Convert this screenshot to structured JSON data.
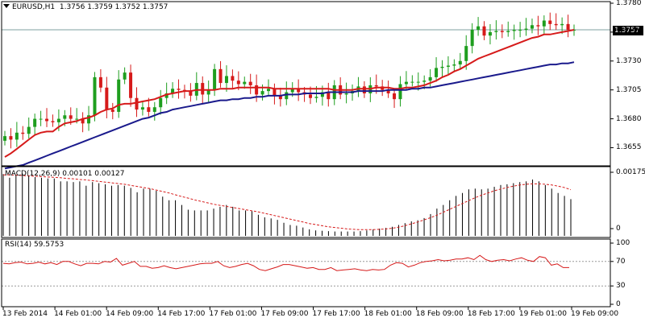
{
  "header": {
    "symbol": "EURUSD,H1",
    "ohlc": "1.3756 1.3759 1.3752 1.3757"
  },
  "last_price_label": "1.3757",
  "colors": {
    "bull": "#1e9e1e",
    "bear": "#d61a1a",
    "ma_fast": "#d61a1a",
    "ma_slow": "#1a1a8c",
    "grid": "#7fa0a0",
    "axis": "#000000"
  },
  "chart_data": [
    {
      "type": "candlestick",
      "title": "EURUSD,H1",
      "ylim": [
        1.364,
        1.378
      ],
      "y_ticks": [
        "1.3780",
        "1.3755",
        "1.3730",
        "1.3705",
        "1.3680",
        "1.3655"
      ],
      "x_ticks": [
        "13 Feb 2014",
        "14 Feb 01:00",
        "14 Feb 09:00",
        "14 Feb 17:00",
        "17 Feb 01:00",
        "17 Feb 09:00",
        "17 Feb 17:00",
        "18 Feb 01:00",
        "18 Feb 09:00",
        "18 Feb 17:00",
        "19 Feb 01:00",
        "19 Feb 09:00"
      ],
      "last_price": 1.3757,
      "series": [
        {
          "name": "price",
          "closes": [
            1.3665,
            1.3662,
            1.3668,
            1.3667,
            1.3673,
            1.368,
            1.368,
            1.3678,
            1.3677,
            1.368,
            1.3683,
            1.368,
            1.368,
            1.3676,
            1.3683,
            1.3716,
            1.3707,
            1.3688,
            1.3686,
            1.3714,
            1.372,
            1.3698,
            1.3688,
            1.369,
            1.3686,
            1.369,
            1.3698,
            1.3702,
            1.3706,
            1.3705,
            1.3704,
            1.37,
            1.3711,
            1.3701,
            1.3705,
            1.3723,
            1.3711,
            1.3717,
            1.3713,
            1.371,
            1.3712,
            1.3709,
            1.3701,
            1.3704,
            1.3706,
            1.37,
            1.3697,
            1.3703,
            1.3706,
            1.3703,
            1.3701,
            1.3698,
            1.3699,
            1.3703,
            1.3697,
            1.3709,
            1.3701,
            1.3702,
            1.3704,
            1.3708,
            1.3702,
            1.3709,
            1.3708,
            1.3705,
            1.3702,
            1.3697,
            1.371,
            1.3712,
            1.3712,
            1.3712,
            1.3713,
            1.3716,
            1.3724,
            1.3725,
            1.3726,
            1.3727,
            1.373,
            1.3743,
            1.3757,
            1.376,
            1.3752,
            1.3755,
            1.3756,
            1.3755,
            1.3756,
            1.3757,
            1.3757,
            1.3758,
            1.3761,
            1.376,
            1.3765,
            1.3762,
            1.3761,
            1.3762,
            1.3757,
            1.3757
          ]
        },
        {
          "name": "ma_fast",
          "values": [
            1.3647,
            1.365,
            1.3654,
            1.3658,
            1.3662,
            1.3666,
            1.3668,
            1.3669,
            1.3669,
            1.3673,
            1.3676,
            1.3677,
            1.3678,
            1.368,
            1.3681,
            1.3683,
            1.3686,
            1.3688,
            1.3689,
            1.3692,
            1.3693,
            1.3693,
            1.3694,
            1.3695,
            1.3696,
            1.3697,
            1.3699,
            1.3701,
            1.3702,
            1.3703,
            1.3704,
            1.3704,
            1.3705,
            1.3705,
            1.3705,
            1.3705,
            1.3706,
            1.3706,
            1.3706,
            1.3707,
            1.3707,
            1.3707,
            1.3707,
            1.3707,
            1.3707,
            1.3706,
            1.3706,
            1.3706,
            1.3706,
            1.3706,
            1.3706,
            1.3706,
            1.3706,
            1.3706,
            1.3706,
            1.3705,
            1.3705,
            1.3705,
            1.3705,
            1.3706,
            1.3706,
            1.3706,
            1.3707,
            1.3707,
            1.3707,
            1.3706,
            1.3706,
            1.3707,
            1.3707,
            1.3708,
            1.3709,
            1.3711,
            1.3713,
            1.3716,
            1.3718,
            1.3721,
            1.3723,
            1.3726,
            1.3729,
            1.3732,
            1.3734,
            1.3736,
            1.3738,
            1.374,
            1.3742,
            1.3744,
            1.3746,
            1.3748,
            1.375,
            1.3751,
            1.3753,
            1.3753,
            1.3754,
            1.3755,
            1.3756,
            1.3757
          ]
        },
        {
          "name": "ma_slow",
          "values": [
            1.3637,
            1.3638,
            1.3639,
            1.364,
            1.3642,
            1.3644,
            1.3646,
            1.3648,
            1.365,
            1.3652,
            1.3654,
            1.3656,
            1.3658,
            1.366,
            1.3662,
            1.3664,
            1.3666,
            1.3668,
            1.367,
            1.3672,
            1.3674,
            1.3676,
            1.3678,
            1.368,
            1.3681,
            1.3683,
            1.3685,
            1.3686,
            1.3688,
            1.3689,
            1.369,
            1.3691,
            1.3692,
            1.3693,
            1.3694,
            1.3695,
            1.3696,
            1.3696,
            1.3697,
            1.3697,
            1.3698,
            1.3698,
            1.3699,
            1.3699,
            1.37,
            1.37,
            1.37,
            1.3701,
            1.3701,
            1.3701,
            1.3702,
            1.3702,
            1.3702,
            1.3702,
            1.3703,
            1.3703,
            1.3703,
            1.3703,
            1.3703,
            1.3704,
            1.3704,
            1.3704,
            1.3704,
            1.3704,
            1.3705,
            1.3705,
            1.3705,
            1.3705,
            1.3706,
            1.3706,
            1.3707,
            1.3707,
            1.3708,
            1.3709,
            1.371,
            1.3711,
            1.3712,
            1.3713,
            1.3714,
            1.3715,
            1.3716,
            1.3717,
            1.3718,
            1.3719,
            1.372,
            1.3721,
            1.3722,
            1.3723,
            1.3724,
            1.3725,
            1.3726,
            1.3727,
            1.3727,
            1.3728,
            1.3728,
            1.3729
          ]
        }
      ]
    },
    {
      "type": "histogram",
      "title": "MACD(12,26,9) 0.00101 0.00127",
      "y_ticks": [
        "0.00175",
        "0"
      ],
      "ylim": [
        0.0,
        0.00175
      ],
      "series": [
        {
          "name": "macd",
          "values": [
            0.0017,
            0.0016,
            0.00168,
            0.00172,
            0.00165,
            0.00162,
            0.0016,
            0.00158,
            0.00158,
            0.0015,
            0.0015,
            0.00148,
            0.0015,
            0.00138,
            0.00148,
            0.00145,
            0.00142,
            0.00138,
            0.0014,
            0.00138,
            0.00132,
            0.0012,
            0.0013,
            0.0013,
            0.00124,
            0.00108,
            0.00098,
            0.00098,
            0.00085,
            0.00072,
            0.0007,
            0.0007,
            0.0007,
            0.00075,
            0.0008,
            0.00085,
            0.0008,
            0.0007,
            0.0007,
            0.00068,
            0.00058,
            0.00051,
            0.00048,
            0.00044,
            0.00036,
            0.0003,
            0.00028,
            0.00023,
            0.00018,
            0.00015,
            0.00014,
            0.00013,
            0.00012,
            0.00012,
            0.00012,
            0.00012,
            0.00013,
            0.00015,
            0.00018,
            0.0002,
            0.00022,
            0.00025,
            0.0003,
            0.00035,
            0.0004,
            0.00043,
            0.00049,
            0.0006,
            0.00075,
            0.00085,
            0.00098,
            0.0011,
            0.00118,
            0.00128,
            0.0013,
            0.00128,
            0.0013,
            0.00135,
            0.0014,
            0.00142,
            0.00145,
            0.00148,
            0.0015,
            0.00155,
            0.0015,
            0.0014,
            0.0013,
            0.00118,
            0.0011,
            0.00101
          ]
        },
        {
          "name": "signal",
          "values": [
            0.00168,
            0.00168,
            0.00167,
            0.00166,
            0.00165,
            0.00164,
            0.00163,
            0.00162,
            0.00161,
            0.0016,
            0.00158,
            0.00157,
            0.00155,
            0.00154,
            0.00152,
            0.0015,
            0.00148,
            0.00146,
            0.00144,
            0.00142,
            0.00139,
            0.00136,
            0.00133,
            0.0013,
            0.00126,
            0.00122,
            0.00118,
            0.00113,
            0.00108,
            0.00104,
            0.00099,
            0.00095,
            0.00091,
            0.00087,
            0.00084,
            0.00081,
            0.00078,
            0.00075,
            0.00072,
            0.00069,
            0.00066,
            0.00062,
            0.00058,
            0.00054,
            0.0005,
            0.00046,
            0.00042,
            0.00038,
            0.00034,
            0.00031,
            0.00028,
            0.00025,
            0.00023,
            0.00021,
            0.00019,
            0.00018,
            0.00017,
            0.00017,
            0.00017,
            0.00018,
            0.00019,
            0.00021,
            0.00024,
            0.00028,
            0.00033,
            0.00038,
            0.00044,
            0.0005,
            0.00057,
            0.00065,
            0.00073,
            0.00081,
            0.00089,
            0.00097,
            0.00105,
            0.00112,
            0.00118,
            0.00124,
            0.00129,
            0.00133,
            0.00137,
            0.0014,
            0.00142,
            0.00143,
            0.00143,
            0.00142,
            0.0014,
            0.00137,
            0.00133,
            0.00127
          ]
        }
      ]
    },
    {
      "type": "line",
      "title": "RSI(14) 59.5753",
      "y_ticks": [
        "100",
        "70",
        "30",
        "0"
      ],
      "levels": [
        70,
        30
      ],
      "ylim": [
        0,
        100
      ],
      "series": [
        {
          "name": "rsi",
          "values": [
            67,
            66,
            68,
            69,
            66,
            67,
            69,
            66,
            68,
            65,
            70,
            70,
            66,
            63,
            67,
            67,
            66,
            70,
            69,
            75,
            64,
            67,
            70,
            62,
            62,
            59,
            60,
            63,
            60,
            58,
            60,
            62,
            64,
            66,
            67,
            67,
            70,
            63,
            60,
            62,
            65,
            67,
            63,
            57,
            55,
            58,
            61,
            65,
            65,
            63,
            61,
            59,
            60,
            57,
            57,
            60,
            55,
            56,
            57,
            58,
            56,
            55,
            57,
            56,
            57,
            64,
            68,
            67,
            61,
            64,
            68,
            70,
            71,
            73,
            71,
            72,
            74,
            74,
            76,
            73,
            80,
            73,
            70,
            72,
            73,
            71,
            74,
            76,
            72,
            70,
            78,
            76,
            64,
            66,
            60,
            60
          ]
        }
      ]
    }
  ]
}
